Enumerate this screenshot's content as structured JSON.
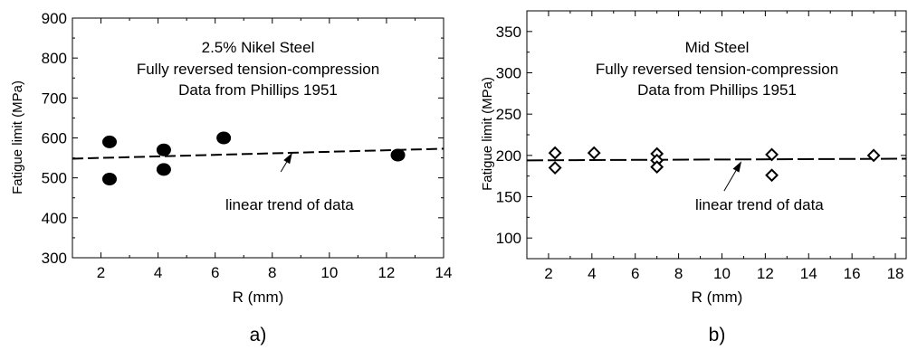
{
  "chart_data": [
    {
      "type": "scatter",
      "panel_label": "a)",
      "annotation_lines": [
        "2.5% Nikel Steel",
        "Fully reversed tension-compression",
        "Data from Phillips 1951"
      ],
      "trend_label": "linear trend of data",
      "xlabel": "R (mm)",
      "ylabel": "Fatigue limit (MPa)",
      "xlim": [
        1,
        14
      ],
      "ylim": [
        300,
        900
      ],
      "xticks": [
        2,
        4,
        6,
        8,
        10,
        12,
        14
      ],
      "yticks": [
        300,
        400,
        500,
        600,
        700,
        800,
        900
      ],
      "marker": "filled-circle",
      "series": [
        {
          "points": [
            {
              "x": 2.3,
              "y": 590
            },
            {
              "x": 2.3,
              "y": 497
            },
            {
              "x": 4.2,
              "y": 570
            },
            {
              "x": 4.2,
              "y": 521
            },
            {
              "x": 6.3,
              "y": 600
            },
            {
              "x": 12.4,
              "y": 557
            }
          ]
        }
      ],
      "trend_line": {
        "x": [
          1,
          14
        ],
        "y": [
          548,
          573
        ]
      },
      "trend_arrow": {
        "from": [
          8.3,
          515
        ],
        "to": [
          8.7,
          563
        ]
      },
      "grid": false
    },
    {
      "type": "scatter",
      "panel_label": "b)",
      "annotation_lines": [
        "Mid Steel",
        "Fully reversed tension-compression",
        "Data from Phillips 1951"
      ],
      "trend_label": "linear trend of data",
      "xlabel": "R (mm)",
      "ylabel": "Fatigue limit (MPa)",
      "xlim": [
        1,
        18.5
      ],
      "ylim": [
        75,
        375
      ],
      "xticks": [
        2,
        4,
        6,
        8,
        10,
        12,
        14,
        16,
        18
      ],
      "yticks": [
        100,
        150,
        200,
        250,
        300,
        350
      ],
      "marker": "open-diamond",
      "series": [
        {
          "points": [
            {
              "x": 2.3,
              "y": 203
            },
            {
              "x": 2.3,
              "y": 185
            },
            {
              "x": 4.1,
              "y": 203
            },
            {
              "x": 7.0,
              "y": 202
            },
            {
              "x": 7.0,
              "y": 194
            },
            {
              "x": 7.0,
              "y": 186
            },
            {
              "x": 12.3,
              "y": 201
            },
            {
              "x": 12.3,
              "y": 176
            },
            {
              "x": 17.0,
              "y": 200
            }
          ]
        }
      ],
      "trend_line": {
        "x": [
          1,
          18.5
        ],
        "y": [
          194,
          196
        ]
      },
      "trend_arrow": {
        "from": [
          10.1,
          157
        ],
        "to": [
          10.9,
          193
        ]
      },
      "grid": false
    }
  ]
}
